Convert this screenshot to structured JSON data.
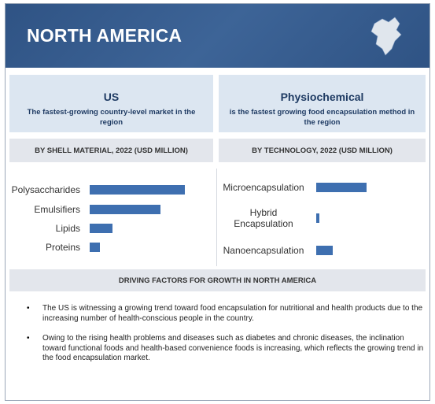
{
  "header": {
    "title": "NORTH AMERICA"
  },
  "highlights": [
    {
      "heading": "US",
      "text": "The fastest-growing country-level market in the region"
    },
    {
      "heading": "Physiochemical",
      "text": "is the fastest growing food encapsulation method in the region"
    }
  ],
  "chart_data": [
    {
      "type": "bar",
      "orientation": "horizontal",
      "title": "BY SHELL MATERIAL, 2022 (USD MILLION)",
      "categories": [
        "Polysaccharides",
        "Emulsifiers",
        "Lipids",
        "Proteins"
      ],
      "values": [
        121,
        90,
        29,
        13
      ],
      "color": "#3e6fb0"
    },
    {
      "type": "bar",
      "orientation": "horizontal",
      "title": "BY TECHNOLOGY, 2022 (USD MILLION)",
      "categories": [
        "Microencapsulation",
        "Hybrid Encapsulation",
        "Nanoencapsulation"
      ],
      "values": [
        64,
        4,
        21
      ],
      "color": "#3e6fb0"
    }
  ],
  "drivers": {
    "title": "DRIVING FACTORS FOR GROWTH IN NORTH AMERICA",
    "items": [
      "The US is witnessing a growing trend toward food encapsulation for nutritional and health products due to the increasing number of health-conscious people in the country.",
      "Owing to the rising health problems and diseases such as diabetes and chronic diseases, the inclination toward functional foods and health-based convenience foods is increasing, which reflects the growing trend in the food encapsulation market."
    ]
  }
}
